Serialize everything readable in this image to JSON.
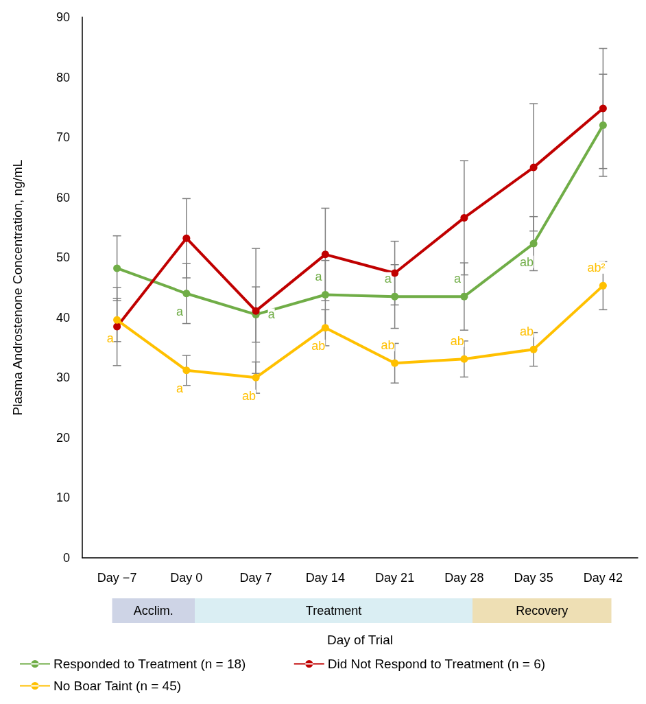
{
  "chart_data": {
    "type": "line",
    "xlabel": "Day of Trial",
    "ylabel": "Plasma Androstenone Concentration, ng/mL",
    "categories": [
      "Day −7",
      "Day 0",
      "Day 7",
      "Day 14",
      "Day 21",
      "Day 28",
      "Day 35",
      "Day 42"
    ],
    "series": [
      {
        "name": "Responded to Treatment (n = 18)",
        "color": "#70ad47",
        "values": [
          48.2,
          44.0,
          40.5,
          43.8,
          43.5,
          43.5,
          52.3,
          72.0
        ],
        "errors": [
          5.4,
          5.0,
          4.6,
          5.7,
          5.3,
          5.6,
          4.5,
          8.5
        ],
        "value_labels": [
          null,
          "a",
          "a",
          "a",
          "a",
          "a",
          "ab",
          null
        ]
      },
      {
        "name": "Did Not Respond to Treatment (n = 6)",
        "color": "#c00000",
        "values": [
          38.5,
          53.2,
          41.1,
          50.5,
          47.4,
          56.6,
          65.0,
          74.8
        ],
        "errors": [
          6.5,
          6.6,
          10.4,
          7.7,
          5.3,
          9.5,
          10.6,
          10.0
        ]
      },
      {
        "name": "No Boar Taint (n = 45)",
        "color": "#ffc000",
        "values": [
          39.6,
          31.2,
          30.0,
          38.3,
          32.4,
          33.1,
          34.7,
          45.3
        ],
        "errors": [
          3.6,
          2.5,
          2.6,
          3.0,
          3.3,
          3.0,
          2.8,
          4.0
        ],
        "value_labels": [
          "a",
          "a",
          "ab",
          "ab",
          "ab",
          "ab",
          "ab",
          "ab²"
        ]
      }
    ],
    "annotations": [
      "Acclim.",
      "Treatment",
      "Recovery"
    ],
    "ylim": [
      0,
      90
    ],
    "yticks": [
      0,
      10,
      20,
      30,
      40,
      50,
      60,
      70,
      80,
      90
    ],
    "grid": false,
    "legend": "bottom",
    "marker": "circle",
    "line_style": "solid"
  }
}
